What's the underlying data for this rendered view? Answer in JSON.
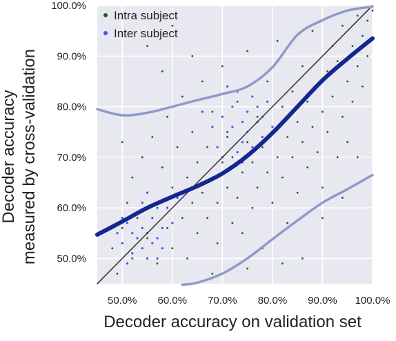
{
  "chart_data": {
    "type": "scatter",
    "title": "",
    "xlabel": "Decoder accuracy on validation set",
    "ylabel_lines": [
      "Decoder accuracy",
      "measured by cross-validation"
    ],
    "xlim": [
      0.45,
      1.0
    ],
    "ylim": [
      0.45,
      1.0
    ],
    "x_ticks": [
      0.5,
      0.6,
      0.7,
      0.8,
      0.9,
      1.0
    ],
    "x_tick_labels": [
      "50.0%",
      "60.0%",
      "70.0%",
      "80.0%",
      "90.0%",
      "100.0%"
    ],
    "y_ticks": [
      0.5,
      0.6,
      0.7,
      0.8,
      0.9,
      1.0
    ],
    "y_tick_labels": [
      "50.0%",
      "60.0%",
      "70.0%",
      "80.0%",
      "90.0%",
      "100.0%"
    ],
    "grid": true,
    "legend_position": "top-left",
    "series": [
      {
        "name": "Intra subject",
        "color": "#1a5e1a",
        "points": [
          [
            0.48,
            0.52
          ],
          [
            0.49,
            0.47
          ],
          [
            0.5,
            0.56
          ],
          [
            0.51,
            0.61
          ],
          [
            0.52,
            0.5
          ],
          [
            0.52,
            0.66
          ],
          [
            0.53,
            0.58
          ],
          [
            0.54,
            0.7
          ],
          [
            0.55,
            0.54
          ],
          [
            0.55,
            0.63
          ],
          [
            0.56,
            0.74
          ],
          [
            0.57,
            0.49
          ],
          [
            0.57,
            0.6
          ],
          [
            0.58,
            0.68
          ],
          [
            0.59,
            0.56
          ],
          [
            0.59,
            0.78
          ],
          [
            0.6,
            0.52
          ],
          [
            0.6,
            0.64
          ],
          [
            0.61,
            0.72
          ],
          [
            0.62,
            0.58
          ],
          [
            0.62,
            0.82
          ],
          [
            0.63,
            0.5
          ],
          [
            0.63,
            0.66
          ],
          [
            0.64,
            0.61
          ],
          [
            0.64,
            0.75
          ],
          [
            0.65,
            0.55
          ],
          [
            0.65,
            0.69
          ],
          [
            0.66,
            0.85
          ],
          [
            0.66,
            0.63
          ],
          [
            0.67,
            0.58
          ],
          [
            0.67,
            0.72
          ],
          [
            0.68,
            0.66
          ],
          [
            0.68,
            0.79
          ],
          [
            0.69,
            0.53
          ],
          [
            0.69,
            0.61
          ],
          [
            0.7,
            0.69
          ],
          [
            0.7,
            0.88
          ],
          [
            0.71,
            0.64
          ],
          [
            0.71,
            0.75
          ],
          [
            0.72,
            0.57
          ],
          [
            0.72,
            0.7
          ],
          [
            0.73,
            0.62
          ],
          [
            0.73,
            0.81
          ],
          [
            0.74,
            0.67
          ],
          [
            0.74,
            0.55
          ],
          [
            0.75,
            0.73
          ],
          [
            0.75,
            0.91
          ],
          [
            0.76,
            0.6
          ],
          [
            0.76,
            0.69
          ],
          [
            0.77,
            0.78
          ],
          [
            0.77,
            0.64
          ],
          [
            0.78,
            0.72
          ],
          [
            0.78,
            0.52
          ],
          [
            0.79,
            0.85
          ],
          [
            0.79,
            0.67
          ],
          [
            0.8,
            0.75
          ],
          [
            0.8,
            0.61
          ],
          [
            0.81,
            0.7
          ],
          [
            0.81,
            0.93
          ],
          [
            0.82,
            0.8
          ],
          [
            0.82,
            0.66
          ],
          [
            0.83,
            0.74
          ],
          [
            0.83,
            0.57
          ],
          [
            0.84,
            0.83
          ],
          [
            0.84,
            0.7
          ],
          [
            0.85,
            0.77
          ],
          [
            0.85,
            0.63
          ],
          [
            0.86,
            0.88
          ],
          [
            0.86,
            0.73
          ],
          [
            0.87,
            0.81
          ],
          [
            0.87,
            0.68
          ],
          [
            0.88,
            0.76
          ],
          [
            0.88,
            0.95
          ],
          [
            0.89,
            0.84
          ],
          [
            0.89,
            0.71
          ],
          [
            0.9,
            0.79
          ],
          [
            0.9,
            0.64
          ],
          [
            0.91,
            0.87
          ],
          [
            0.91,
            0.75
          ],
          [
            0.92,
            0.92
          ],
          [
            0.92,
            0.82
          ],
          [
            0.93,
            0.7
          ],
          [
            0.93,
            0.89
          ],
          [
            0.94,
            0.78
          ],
          [
            0.94,
            0.96
          ],
          [
            0.95,
            0.85
          ],
          [
            0.95,
            0.73
          ],
          [
            0.96,
            0.92
          ],
          [
            0.96,
            0.81
          ],
          [
            0.97,
            0.88
          ],
          [
            0.97,
            0.98
          ],
          [
            0.98,
            0.94
          ],
          [
            0.98,
            0.84
          ],
          [
            0.99,
            0.97
          ],
          [
            0.99,
            0.9
          ],
          [
            1.0,
            0.99
          ],
          [
            0.55,
            0.92
          ],
          [
            0.6,
            0.96
          ],
          [
            0.68,
            0.47
          ],
          [
            0.75,
            0.48
          ],
          [
            0.82,
            0.49
          ],
          [
            0.9,
            0.58
          ],
          [
            0.94,
            0.62
          ],
          [
            0.97,
            0.7
          ],
          [
            0.5,
            0.73
          ],
          [
            0.58,
            0.87
          ],
          [
            0.64,
            0.9
          ],
          [
            0.86,
            0.5
          ]
        ]
      },
      {
        "name": "Inter subject",
        "color": "#4a4ef0",
        "points": [
          [
            0.49,
            0.55
          ],
          [
            0.5,
            0.53
          ],
          [
            0.51,
            0.57
          ],
          [
            0.52,
            0.51
          ],
          [
            0.52,
            0.55
          ],
          [
            0.53,
            0.54
          ],
          [
            0.53,
            0.59
          ],
          [
            0.54,
            0.52
          ],
          [
            0.54,
            0.56
          ],
          [
            0.55,
            0.5
          ],
          [
            0.55,
            0.55
          ],
          [
            0.56,
            0.53
          ],
          [
            0.56,
            0.58
          ],
          [
            0.57,
            0.54
          ],
          [
            0.58,
            0.56
          ],
          [
            0.58,
            0.52
          ],
          [
            0.59,
            0.6
          ],
          [
            0.6,
            0.57
          ],
          [
            0.51,
            0.49
          ],
          [
            0.54,
            0.61
          ],
          [
            0.57,
            0.5
          ],
          [
            0.61,
            0.62
          ],
          [
            0.5,
            0.58
          ],
          [
            0.55,
            0.63
          ],
          [
            0.7,
            0.78
          ],
          [
            0.71,
            0.74
          ],
          [
            0.72,
            0.8
          ],
          [
            0.72,
            0.76
          ],
          [
            0.73,
            0.71
          ],
          [
            0.73,
            0.83
          ],
          [
            0.74,
            0.77
          ],
          [
            0.74,
            0.73
          ],
          [
            0.75,
            0.79
          ],
          [
            0.75,
            0.75
          ],
          [
            0.76,
            0.82
          ],
          [
            0.76,
            0.72
          ],
          [
            0.77,
            0.77
          ],
          [
            0.77,
            0.8
          ],
          [
            0.78,
            0.74
          ],
          [
            0.78,
            0.78
          ],
          [
            0.79,
            0.81
          ],
          [
            0.68,
            0.76
          ],
          [
            0.69,
            0.72
          ],
          [
            0.7,
            0.7
          ],
          [
            0.8,
            0.76
          ],
          [
            0.71,
            0.84
          ],
          [
            0.74,
            0.69
          ],
          [
            0.66,
            0.79
          ]
        ]
      }
    ],
    "lines": [
      {
        "name": "",
        "role": "identity",
        "color": "#3a3a3a",
        "points": [
          [
            0.45,
            0.45
          ],
          [
            1.0,
            1.0
          ]
        ]
      },
      {
        "name": "",
        "role": "trend",
        "color": "#14268f",
        "points": [
          [
            0.45,
            0.547
          ],
          [
            0.5,
            0.573
          ],
          [
            0.55,
            0.6
          ],
          [
            0.6,
            0.622
          ],
          [
            0.65,
            0.643
          ],
          [
            0.7,
            0.668
          ],
          [
            0.75,
            0.703
          ],
          [
            0.8,
            0.748
          ],
          [
            0.85,
            0.8
          ],
          [
            0.9,
            0.852
          ],
          [
            0.95,
            0.895
          ],
          [
            1.0,
            0.935
          ]
        ]
      },
      {
        "name": "",
        "role": "upper-band",
        "color": "#8e9ac8",
        "points": [
          [
            0.45,
            0.795
          ],
          [
            0.5,
            0.783
          ],
          [
            0.55,
            0.788
          ],
          [
            0.6,
            0.8
          ],
          [
            0.65,
            0.813
          ],
          [
            0.7,
            0.825
          ],
          [
            0.75,
            0.84
          ],
          [
            0.8,
            0.878
          ],
          [
            0.85,
            0.942
          ],
          [
            0.9,
            0.971
          ],
          [
            0.95,
            0.99
          ],
          [
            1.0,
            0.998
          ]
        ]
      },
      {
        "name": "",
        "role": "lower-band",
        "color": "#8e9ac8",
        "points": [
          [
            0.62,
            0.448
          ],
          [
            0.65,
            0.452
          ],
          [
            0.7,
            0.47
          ],
          [
            0.75,
            0.5
          ],
          [
            0.8,
            0.538
          ],
          [
            0.85,
            0.575
          ],
          [
            0.9,
            0.61
          ],
          [
            0.95,
            0.637
          ],
          [
            1.0,
            0.665
          ]
        ]
      }
    ]
  }
}
